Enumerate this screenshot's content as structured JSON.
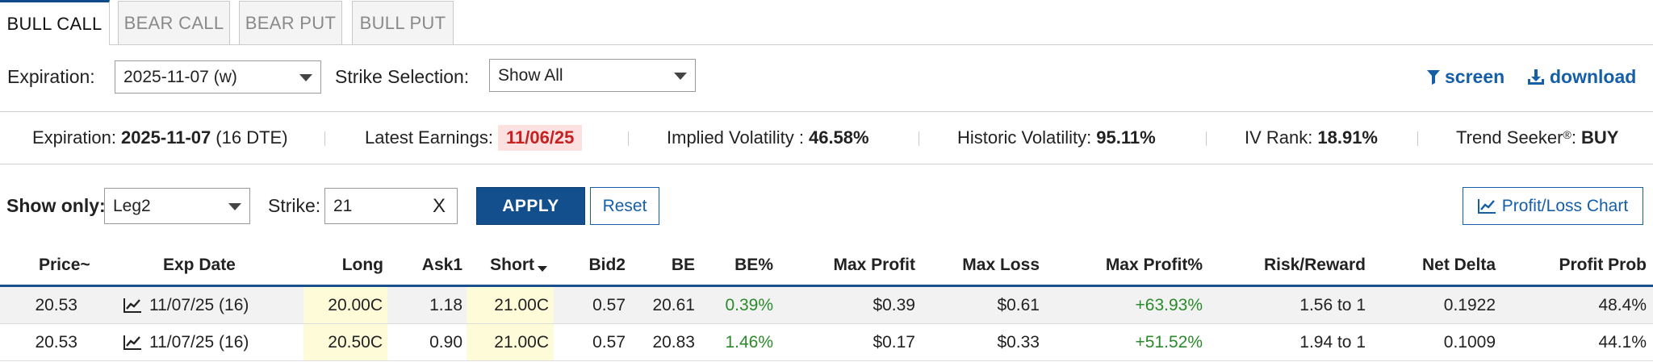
{
  "tabs": [
    {
      "label": "BULL CALL",
      "active": true
    },
    {
      "label": "BEAR CALL",
      "active": false
    },
    {
      "label": "BEAR PUT",
      "active": false
    },
    {
      "label": "BULL PUT",
      "active": false
    }
  ],
  "controls": {
    "expiration_label": "Expiration:",
    "expiration_value": "2025-11-07 (w)",
    "strike_selection_label": "Strike Selection:",
    "strike_selection_value": "Show All",
    "screen_label": "screen",
    "download_label": "download"
  },
  "stats": {
    "expiration_label": "Expiration:",
    "expiration_date": "2025-11-07",
    "expiration_dte": "(16 DTE)",
    "earnings_label": "Latest Earnings:",
    "earnings_value": "11/06/25",
    "iv_label": "Implied Volatility :",
    "iv_value": "46.58%",
    "hv_label": "Historic Volatility:",
    "hv_value": "95.11%",
    "ivrank_label": "IV Rank:",
    "ivrank_value": "18.91%",
    "trend_label": "Trend Seeker",
    "trend_mark": "®",
    "trend_colon": ":",
    "trend_value": "BUY"
  },
  "filter": {
    "show_only_label": "Show only:",
    "show_only_value": "Leg2",
    "strike_label": "Strike:",
    "strike_value": "21",
    "clear_label": "X",
    "apply_label": "APPLY",
    "reset_label": "Reset",
    "chart_label": "Profit/Loss Chart"
  },
  "table": {
    "headers": {
      "price": "Price~",
      "exp_date": "Exp Date",
      "long": "Long",
      "ask1": "Ask1",
      "short": "Short",
      "bid2": "Bid2",
      "be": "BE",
      "be_pct": "BE%",
      "max_profit": "Max Profit",
      "max_loss": "Max Loss",
      "max_profit_pct": "Max Profit%",
      "risk_reward": "Risk/Reward",
      "net_delta": "Net Delta",
      "profit_prob": "Profit Prob"
    },
    "rows": [
      {
        "price": "20.53",
        "exp_date": "11/07/25 (16)",
        "long": "20.00C",
        "ask1": "1.18",
        "short": "21.00C",
        "bid2": "0.57",
        "be": "20.61",
        "be_pct": "0.39%",
        "max_profit": "$0.39",
        "max_loss": "$0.61",
        "max_profit_pct": "+63.93%",
        "risk_reward": "1.56 to 1",
        "net_delta": "0.1922",
        "profit_prob": "48.4%"
      },
      {
        "price": "20.53",
        "exp_date": "11/07/25 (16)",
        "long": "20.50C",
        "ask1": "0.90",
        "short": "21.00C",
        "bid2": "0.57",
        "be": "20.83",
        "be_pct": "1.46%",
        "max_profit": "$0.17",
        "max_loss": "$0.33",
        "max_profit_pct": "+51.52%",
        "risk_reward": "1.94 to 1",
        "net_delta": "0.1009",
        "profit_prob": "44.1%"
      }
    ]
  },
  "colors": {
    "brand_blue": "#134f8c",
    "link_blue": "#155ea8",
    "positive_green": "#2b8a2b",
    "earnings_red": "#c62020",
    "highlight_yellow": "#fdfbd8"
  }
}
